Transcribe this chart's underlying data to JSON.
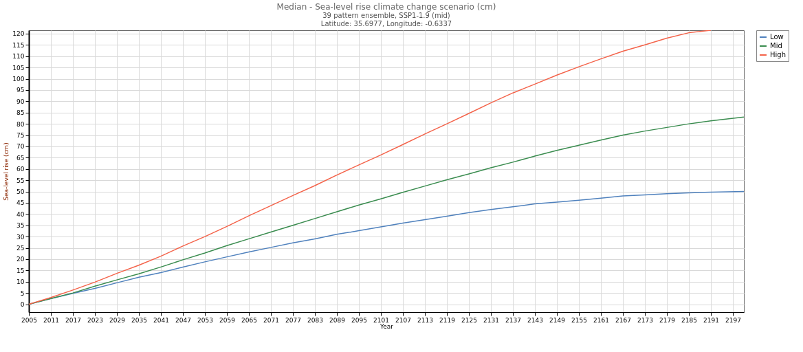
{
  "chart_data": {
    "type": "line",
    "title": "Median - Sea-level rise climate change scenario (cm)",
    "subtitle": "39 pattern ensemble, SSP1-1.9 (mid)",
    "annotations": [
      "Latitude: 35.6977, Longitude: -0.6337"
    ],
    "xlabel": "Year",
    "ylabel": "Sea-level rise (cm)",
    "xlim": [
      2005,
      2200
    ],
    "xticks": [
      2005,
      2011,
      2017,
      2023,
      2029,
      2035,
      2041,
      2047,
      2053,
      2059,
      2065,
      2071,
      2077,
      2083,
      2089,
      2095,
      2101,
      2107,
      2113,
      2119,
      2125,
      2131,
      2137,
      2143,
      2149,
      2155,
      2161,
      2167,
      2173,
      2179,
      2185,
      2191,
      2197
    ],
    "ylim": [
      -3.5,
      121.5
    ],
    "yticks": [
      0,
      5,
      10,
      15,
      20,
      25,
      30,
      35,
      40,
      45,
      50,
      55,
      60,
      65,
      70,
      75,
      80,
      85,
      90,
      95,
      100,
      105,
      110,
      115,
      120
    ],
    "grid": true,
    "legend": "top right",
    "line_style": "solid",
    "marker": "none",
    "series": [
      {
        "name": "Low",
        "color": "#4f81bd",
        "x": [
          2005,
          2011,
          2017,
          2023,
          2029,
          2035,
          2041,
          2047,
          2053,
          2059,
          2065,
          2071,
          2077,
          2083,
          2089,
          2095,
          2101,
          2107,
          2113,
          2119,
          2125,
          2131,
          2137,
          2143,
          2149,
          2155,
          2161,
          2167,
          2173,
          2179,
          2185,
          2191,
          2200
        ],
        "values": [
          0,
          2.5,
          4.8,
          7,
          9.5,
          12,
          14,
          16.5,
          18.8,
          21,
          23.2,
          25.2,
          27.2,
          29,
          31,
          32.6,
          34.3,
          36,
          37.5,
          39,
          40.6,
          42,
          43.2,
          44.5,
          45.3,
          46.1,
          47,
          48,
          48.5,
          49,
          49.4,
          49.7,
          50
        ]
      },
      {
        "name": "Mid",
        "color": "#3a8c4f",
        "x": [
          2005,
          2011,
          2017,
          2023,
          2029,
          2035,
          2041,
          2047,
          2053,
          2059,
          2065,
          2071,
          2077,
          2083,
          2089,
          2095,
          2101,
          2107,
          2113,
          2119,
          2125,
          2131,
          2137,
          2143,
          2149,
          2155,
          2161,
          2167,
          2173,
          2179,
          2185,
          2191,
          2200
        ],
        "values": [
          0,
          2.5,
          5,
          8,
          10.8,
          13.5,
          16.5,
          19.7,
          22.7,
          26,
          29,
          32,
          35,
          38,
          41,
          44,
          46.7,
          49.6,
          52.4,
          55.2,
          57.8,
          60.5,
          63,
          65.7,
          68.2,
          70.5,
          72.8,
          75,
          76.8,
          78.4,
          80,
          81.3,
          83
        ]
      },
      {
        "name": "High",
        "color": "#f4634a",
        "x": [
          2005,
          2011,
          2017,
          2023,
          2029,
          2035,
          2041,
          2047,
          2053,
          2059,
          2065,
          2071,
          2077,
          2083,
          2089,
          2095,
          2101,
          2107,
          2113,
          2119,
          2125,
          2131,
          2137,
          2143,
          2149,
          2155,
          2161,
          2167,
          2173,
          2179,
          2185,
          2191
        ],
        "values": [
          0,
          3,
          6.3,
          9.8,
          13.7,
          17.3,
          21.3,
          25.8,
          30,
          34.5,
          39.2,
          43.7,
          48.2,
          52.6,
          57.3,
          61.8,
          66.2,
          70.8,
          75.5,
          80,
          84.6,
          89.3,
          93.7,
          97.6,
          101.6,
          105.3,
          108.8,
          112.2,
          115,
          118,
          120.4,
          121.5
        ]
      }
    ]
  }
}
